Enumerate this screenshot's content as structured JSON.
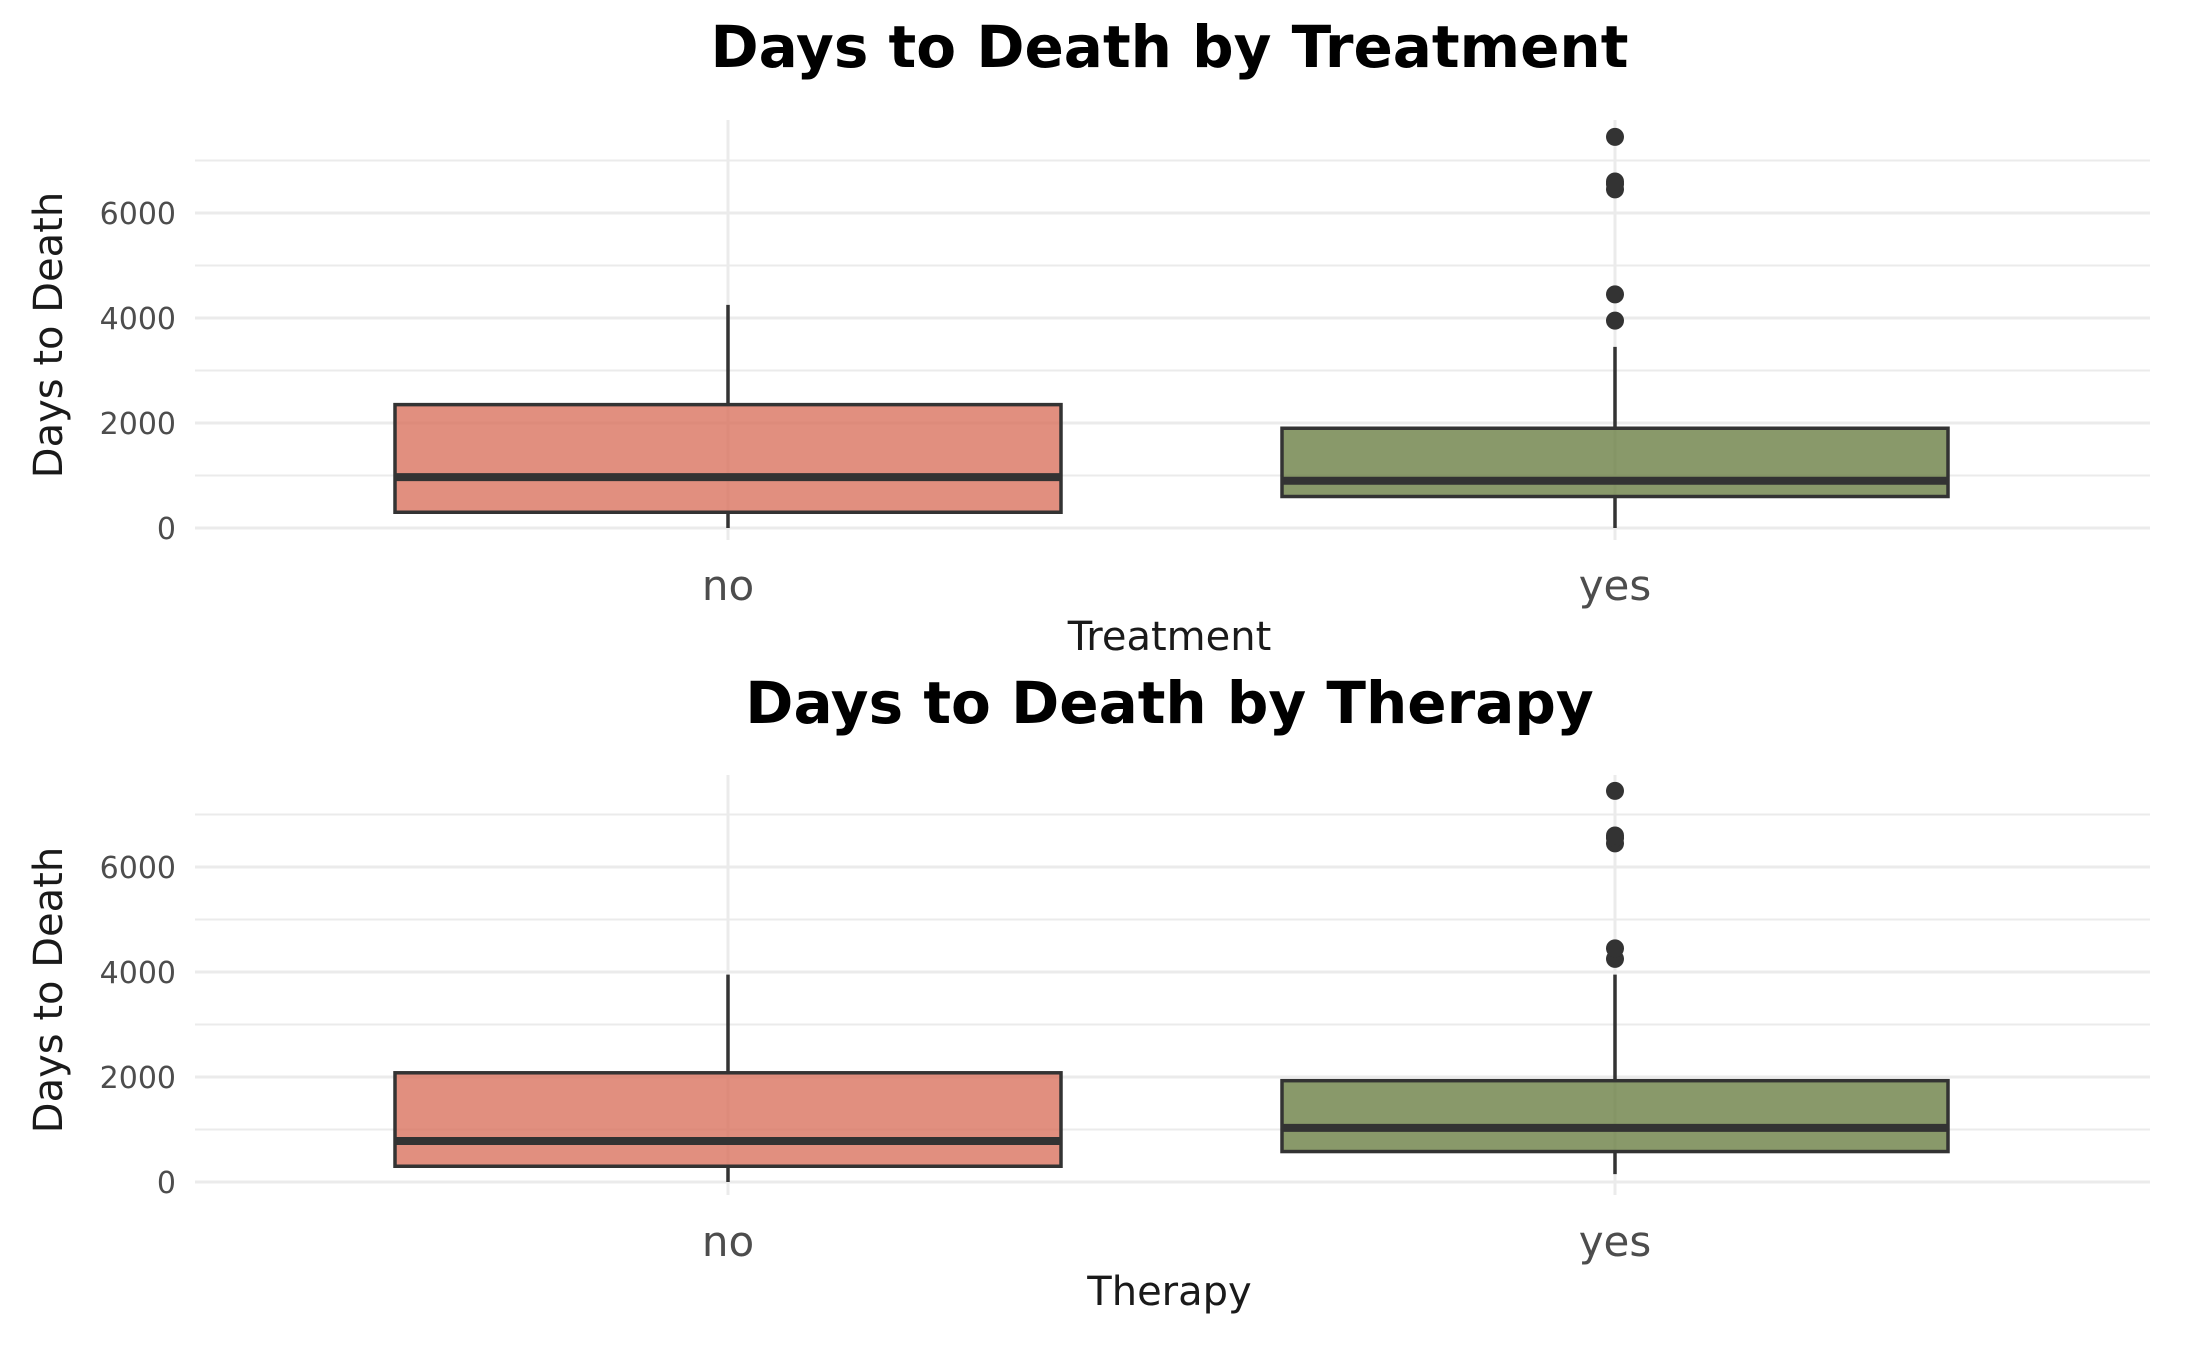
{
  "chart_data": [
    {
      "type": "boxplot",
      "title": "Days to Death by Treatment",
      "xlabel": "Treatment",
      "ylabel": "Days to Death",
      "categories": [
        "no",
        "yes"
      ],
      "ylim": [
        -150,
        7800
      ],
      "y_ticks": [
        0,
        2000,
        4000,
        6000
      ],
      "grid": true,
      "colors": [
        "#d9735f",
        "#6b7f45"
      ],
      "boxes": [
        {
          "category": "no",
          "whisker_low": 0,
          "q1": 300,
          "median": 970,
          "q3": 2350,
          "whisker_high": 4250,
          "outliers": []
        },
        {
          "category": "yes",
          "whisker_low": 0,
          "q1": 600,
          "median": 900,
          "q3": 1900,
          "whisker_high": 3450,
          "outliers": [
            3950,
            4450,
            6450,
            6550,
            6600,
            7450
          ]
        }
      ]
    },
    {
      "type": "boxplot",
      "title": "Days to Death by Therapy",
      "xlabel": "Therapy",
      "ylabel": "Days to Death",
      "categories": [
        "no",
        "yes"
      ],
      "ylim": [
        -150,
        7800
      ],
      "y_ticks": [
        0,
        2000,
        4000,
        6000
      ],
      "grid": true,
      "colors": [
        "#d9735f",
        "#6b7f45"
      ],
      "boxes": [
        {
          "category": "no",
          "whisker_low": 0,
          "q1": 300,
          "median": 780,
          "q3": 2080,
          "whisker_high": 3950,
          "outliers": []
        },
        {
          "category": "yes",
          "whisker_low": 150,
          "q1": 580,
          "median": 1030,
          "q3": 1930,
          "whisker_high": 3950,
          "outliers": [
            4250,
            4450,
            6450,
            6550,
            6600,
            7450
          ]
        }
      ]
    }
  ]
}
